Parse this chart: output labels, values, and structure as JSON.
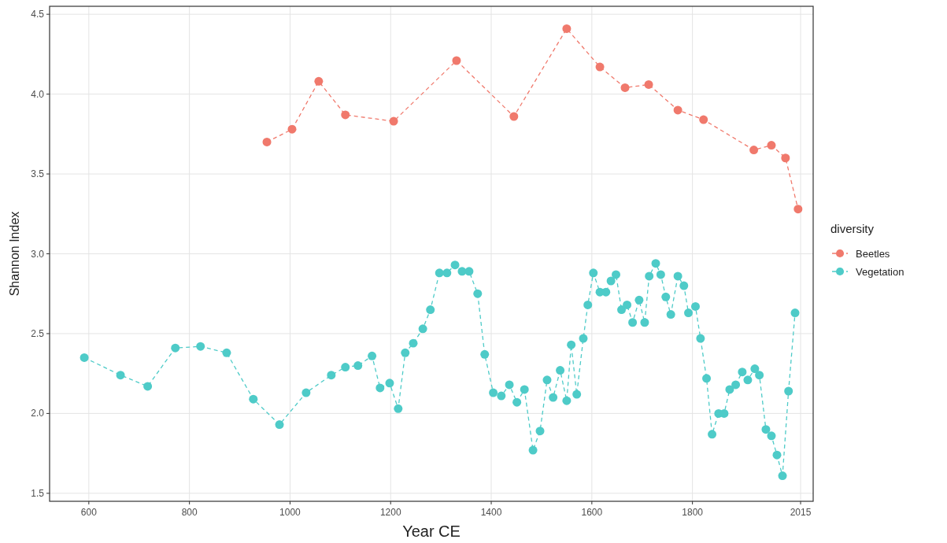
{
  "chart_data": {
    "type": "line",
    "xlabel": "Year CE",
    "ylabel": "Shannon Index",
    "legend_title": "diversity",
    "legend": "right",
    "grid": true,
    "marker": "circle",
    "line_style": "dashed",
    "xlim": [
      522,
      2040
    ],
    "xticks": [
      600,
      800,
      1000,
      1200,
      1400,
      1600,
      1800,
      2015
    ],
    "ylim": [
      1.45,
      4.55
    ],
    "yticks": [
      {
        "value": 1.5,
        "label": "1.5"
      },
      {
        "value": 2,
        "label": "2.0"
      },
      {
        "value": 2.5,
        "label": "2.5"
      },
      {
        "value": 3,
        "label": "3.0"
      },
      {
        "value": 3.5,
        "label": "3.5"
      },
      {
        "value": 4,
        "label": "4.0"
      },
      {
        "value": 4.5,
        "label": "4.5"
      }
    ],
    "series": [
      {
        "name": "Beetles",
        "color": "#f0796c",
        "x": [
          954,
          1004,
          1057,
          1110,
          1206,
          1331,
          1445,
          1550,
          1616,
          1666,
          1713,
          1771,
          1822,
          1922,
          1957,
          1985,
          2010
        ],
        "values": [
          3.7,
          3.78,
          4.08,
          3.87,
          3.83,
          4.21,
          3.86,
          4.41,
          4.17,
          4.04,
          4.06,
          3.9,
          3.84,
          3.65,
          3.68,
          3.6,
          3.28
        ]
      },
      {
        "name": "Vegetation",
        "color": "#4ecbc8",
        "x": [
          591,
          663,
          717,
          772,
          822,
          874,
          927,
          979,
          1032,
          1082,
          1110,
          1135,
          1163,
          1179,
          1198,
          1215,
          1229,
          1245,
          1264,
          1279,
          1297,
          1312,
          1328,
          1342,
          1356,
          1373,
          1387,
          1404,
          1420,
          1436,
          1451,
          1466,
          1483,
          1497,
          1511,
          1523,
          1537,
          1550,
          1559,
          1570,
          1583,
          1592,
          1603,
          1616,
          1628,
          1638,
          1648,
          1659,
          1670,
          1681,
          1694,
          1705,
          1714,
          1727,
          1737,
          1747,
          1757,
          1771,
          1783,
          1792,
          1806,
          1816,
          1828,
          1839,
          1852,
          1863,
          1874,
          1886,
          1899,
          1910,
          1924,
          1933,
          1946,
          1957,
          1968,
          1979,
          1991,
          2004
        ],
        "values": [
          2.35,
          2.24,
          2.17,
          2.41,
          2.42,
          2.38,
          2.09,
          1.93,
          2.13,
          2.24,
          2.29,
          2.3,
          2.36,
          2.16,
          2.19,
          2.03,
          2.38,
          2.44,
          2.53,
          2.65,
          2.88,
          2.88,
          2.93,
          2.89,
          2.89,
          2.75,
          2.37,
          2.13,
          2.11,
          2.18,
          2.07,
          2.15,
          1.77,
          1.89,
          2.21,
          2.1,
          2.27,
          2.08,
          2.43,
          2.12,
          2.47,
          2.68,
          2.88,
          2.76,
          2.76,
          2.83,
          2.87,
          2.65,
          2.68,
          2.57,
          2.71,
          2.57,
          2.86,
          2.94,
          2.87,
          2.73,
          2.62,
          2.86,
          2.8,
          2.63,
          2.67,
          2.47,
          2.22,
          1.87,
          2.0,
          2.0,
          2.15,
          2.18,
          2.26,
          2.21,
          2.28,
          2.24,
          1.9,
          1.86,
          1.74,
          1.61,
          2.14,
          2.63
        ]
      }
    ]
  }
}
